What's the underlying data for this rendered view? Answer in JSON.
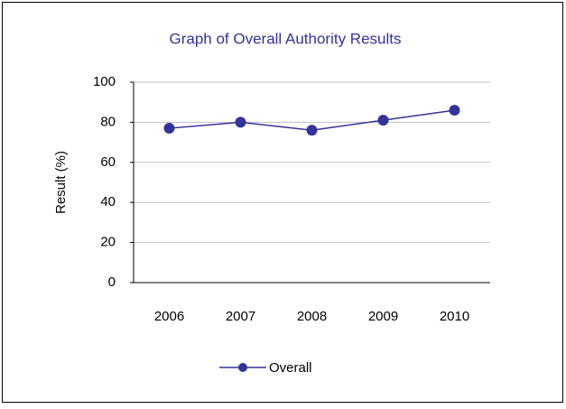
{
  "chart_data": {
    "type": "line",
    "title": "Graph of Overall Authority Results",
    "y_label": "Result (%)",
    "categories": [
      "2006",
      "2007",
      "2008",
      "2009",
      "2010"
    ],
    "series": [
      {
        "name": "Overall",
        "color": "#333399",
        "values": [
          77,
          80,
          76,
          81,
          86
        ]
      }
    ],
    "ylim": [
      0,
      100
    ],
    "yticks": [
      0,
      20,
      40,
      60,
      80,
      100
    ],
    "grid": true,
    "legend": "bottom"
  }
}
